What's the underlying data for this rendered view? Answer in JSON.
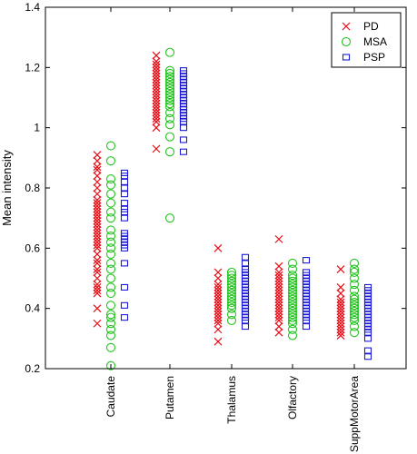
{
  "chart_data": {
    "type": "scatter",
    "title": "",
    "xlabel": "",
    "ylabel": "Mean intensity",
    "ylim": [
      0.2,
      1.4
    ],
    "yticks": [
      "0.2",
      "0.4",
      "0.6",
      "0.8",
      "1",
      "1.2",
      "1.4"
    ],
    "ytick_values": [
      0.2,
      0.4,
      0.6,
      0.8,
      1.0,
      1.2,
      1.4
    ],
    "categories": [
      "Caudate",
      "Putamen",
      "Thalamus",
      "Olfactory",
      "SuppMotorArea"
    ],
    "grid": false,
    "legend_position": "top-right",
    "series": [
      {
        "name": "PD",
        "marker": "x",
        "color": "#e8101a",
        "values": [
          [
            0.35,
            0.4,
            0.45,
            0.46,
            0.47,
            0.48,
            0.5,
            0.52,
            0.53,
            0.55,
            0.56,
            0.58,
            0.6,
            0.61,
            0.62,
            0.63,
            0.64,
            0.65,
            0.66,
            0.67,
            0.68,
            0.69,
            0.7,
            0.71,
            0.72,
            0.73,
            0.74,
            0.75,
            0.76,
            0.78,
            0.8,
            0.82,
            0.84,
            0.86,
            0.87,
            0.89,
            0.91
          ],
          [
            0.93,
            1.0,
            1.02,
            1.03,
            1.04,
            1.05,
            1.06,
            1.07,
            1.08,
            1.09,
            1.1,
            1.11,
            1.12,
            1.13,
            1.14,
            1.15,
            1.16,
            1.17,
            1.18,
            1.19,
            1.2,
            1.21,
            1.22,
            1.24
          ],
          [
            0.29,
            0.33,
            0.35,
            0.36,
            0.37,
            0.38,
            0.39,
            0.4,
            0.41,
            0.42,
            0.43,
            0.44,
            0.45,
            0.46,
            0.47,
            0.48,
            0.5,
            0.52,
            0.6
          ],
          [
            0.32,
            0.34,
            0.36,
            0.37,
            0.38,
            0.39,
            0.4,
            0.41,
            0.42,
            0.43,
            0.44,
            0.45,
            0.46,
            0.47,
            0.48,
            0.49,
            0.5,
            0.51,
            0.52,
            0.54,
            0.63
          ],
          [
            0.31,
            0.32,
            0.33,
            0.34,
            0.35,
            0.36,
            0.37,
            0.38,
            0.39,
            0.4,
            0.41,
            0.42,
            0.43,
            0.45,
            0.47,
            0.53
          ]
        ]
      },
      {
        "name": "MSA",
        "marker": "o",
        "color": "#22c31e",
        "values": [
          [
            0.21,
            0.27,
            0.31,
            0.33,
            0.35,
            0.37,
            0.38,
            0.41,
            0.45,
            0.47,
            0.5,
            0.53,
            0.55,
            0.58,
            0.6,
            0.62,
            0.64,
            0.66,
            0.7,
            0.72,
            0.75,
            0.78,
            0.81,
            0.83,
            0.89,
            0.94
          ],
          [
            0.7,
            0.92,
            0.97,
            1.01,
            1.03,
            1.05,
            1.07,
            1.08,
            1.09,
            1.1,
            1.11,
            1.12,
            1.13,
            1.14,
            1.15,
            1.16,
            1.17,
            1.18,
            1.19,
            1.25
          ],
          [
            0.36,
            0.38,
            0.4,
            0.41,
            0.42,
            0.43,
            0.44,
            0.45,
            0.46,
            0.47,
            0.48,
            0.49,
            0.5,
            0.51,
            0.52
          ],
          [
            0.31,
            0.33,
            0.35,
            0.36,
            0.37,
            0.38,
            0.39,
            0.4,
            0.41,
            0.42,
            0.43,
            0.44,
            0.45,
            0.46,
            0.47,
            0.48,
            0.49,
            0.5,
            0.51,
            0.53,
            0.55
          ],
          [
            0.32,
            0.34,
            0.36,
            0.37,
            0.38,
            0.39,
            0.4,
            0.41,
            0.42,
            0.43,
            0.44,
            0.46,
            0.48,
            0.5,
            0.52,
            0.53,
            0.55
          ]
        ]
      },
      {
        "name": "PSP",
        "marker": "s",
        "color": "#1a1ad6",
        "values": [
          [
            0.37,
            0.41,
            0.47,
            0.55,
            0.6,
            0.61,
            0.62,
            0.63,
            0.64,
            0.65,
            0.7,
            0.72,
            0.73,
            0.75,
            0.78,
            0.8,
            0.82,
            0.84,
            0.85
          ],
          [
            0.92,
            0.96,
            1.0,
            1.02,
            1.03,
            1.04,
            1.05,
            1.06,
            1.07,
            1.08,
            1.09,
            1.1,
            1.11,
            1.12,
            1.13,
            1.14,
            1.15,
            1.16,
            1.17,
            1.18,
            1.19
          ],
          [
            0.34,
            0.36,
            0.37,
            0.38,
            0.39,
            0.4,
            0.41,
            0.42,
            0.43,
            0.44,
            0.45,
            0.46,
            0.47,
            0.48,
            0.49,
            0.5,
            0.51,
            0.52,
            0.53,
            0.55,
            0.57
          ],
          [
            0.34,
            0.36,
            0.37,
            0.38,
            0.39,
            0.4,
            0.41,
            0.42,
            0.43,
            0.44,
            0.45,
            0.46,
            0.47,
            0.48,
            0.49,
            0.5,
            0.51,
            0.52,
            0.56
          ],
          [
            0.24,
            0.26,
            0.3,
            0.32,
            0.33,
            0.34,
            0.35,
            0.36,
            0.37,
            0.38,
            0.39,
            0.4,
            0.41,
            0.42,
            0.43,
            0.44,
            0.45,
            0.46,
            0.47
          ]
        ]
      }
    ]
  }
}
